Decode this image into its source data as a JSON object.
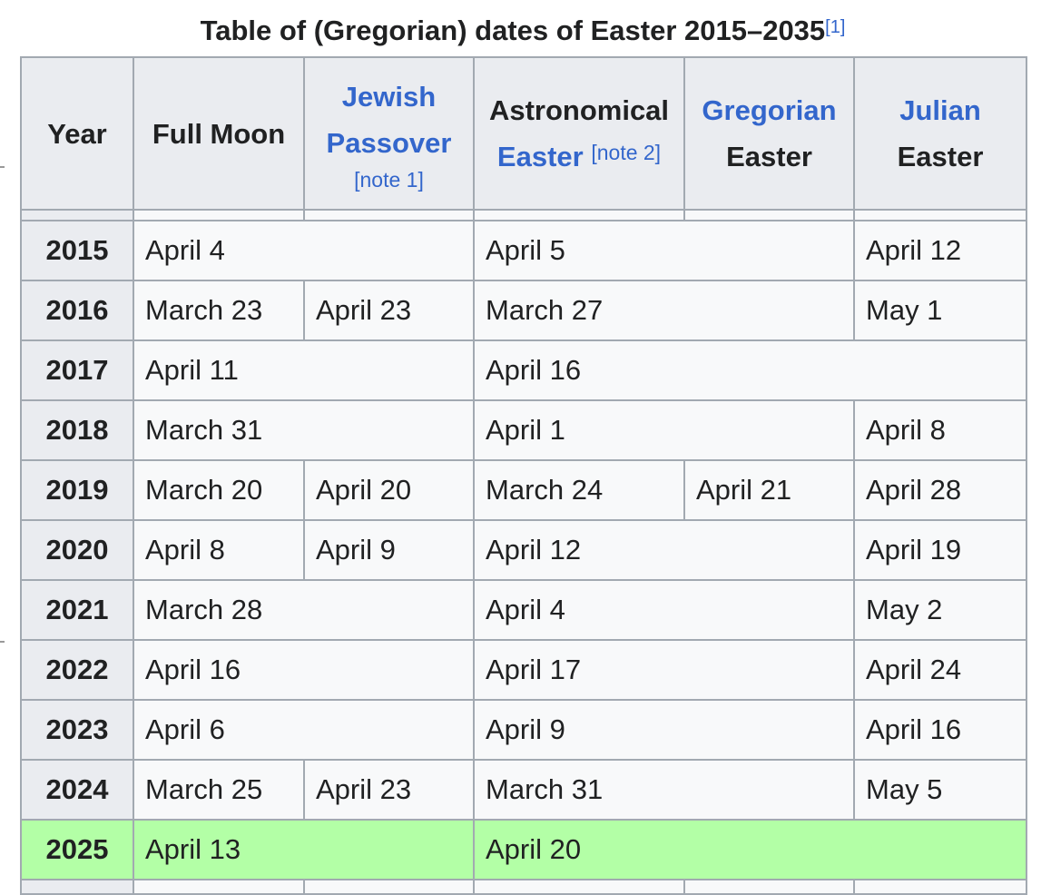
{
  "caption": {
    "title": "Table of (Gregorian) dates of Easter 2015–2035",
    "ref": "[1]"
  },
  "headers": {
    "year": "Year",
    "full_moon": "Full Moon",
    "passover_line1": "Jewish",
    "passover_line2": "Passover",
    "passover_note": "[note 1]",
    "astro_line1": "Astronomical",
    "astro_line2": "Easter",
    "astro_note": "[note 2]",
    "greg_line1": "Gregorian",
    "greg_line2": "Easter",
    "julian_line1": "Julian",
    "julian_line2": "Easter"
  },
  "rows": [
    {
      "year": "2015",
      "full_moon": "April 4",
      "astro": "April 5",
      "julian": "April 12"
    },
    {
      "year": "2016",
      "full_moon": "March 23",
      "passover": "April 23",
      "astro": "March 27",
      "julian": "May 1"
    },
    {
      "year": "2017",
      "full_moon": "April 11",
      "astro": "April 16"
    },
    {
      "year": "2018",
      "full_moon": "March 31",
      "astro": "April 1",
      "julian": "April 8"
    },
    {
      "year": "2019",
      "full_moon": "March 20",
      "passover": "April 20",
      "astro": "March 24",
      "gregorian": "April 21",
      "julian": "April 28"
    },
    {
      "year": "2020",
      "full_moon": "April 8",
      "passover": "April 9",
      "astro": "April 12",
      "julian": "April 19"
    },
    {
      "year": "2021",
      "full_moon": "March 28",
      "astro": "April 4",
      "julian": "May 2"
    },
    {
      "year": "2022",
      "full_moon": "April 16",
      "astro": "April 17",
      "julian": "April 24"
    },
    {
      "year": "2023",
      "full_moon": "April 6",
      "astro": "April 9",
      "julian": "April 16"
    },
    {
      "year": "2024",
      "full_moon": "March 25",
      "passover": "April 23",
      "astro": "March 31",
      "julian": "May 5"
    },
    {
      "year": "2025",
      "full_moon": "April 13",
      "astro": "April 20"
    }
  ],
  "colors": {
    "current_year_highlight": "#b3ffa6",
    "header_bg": "#eaecf0",
    "link": "#3366cc",
    "border": "#a2a9b1"
  }
}
